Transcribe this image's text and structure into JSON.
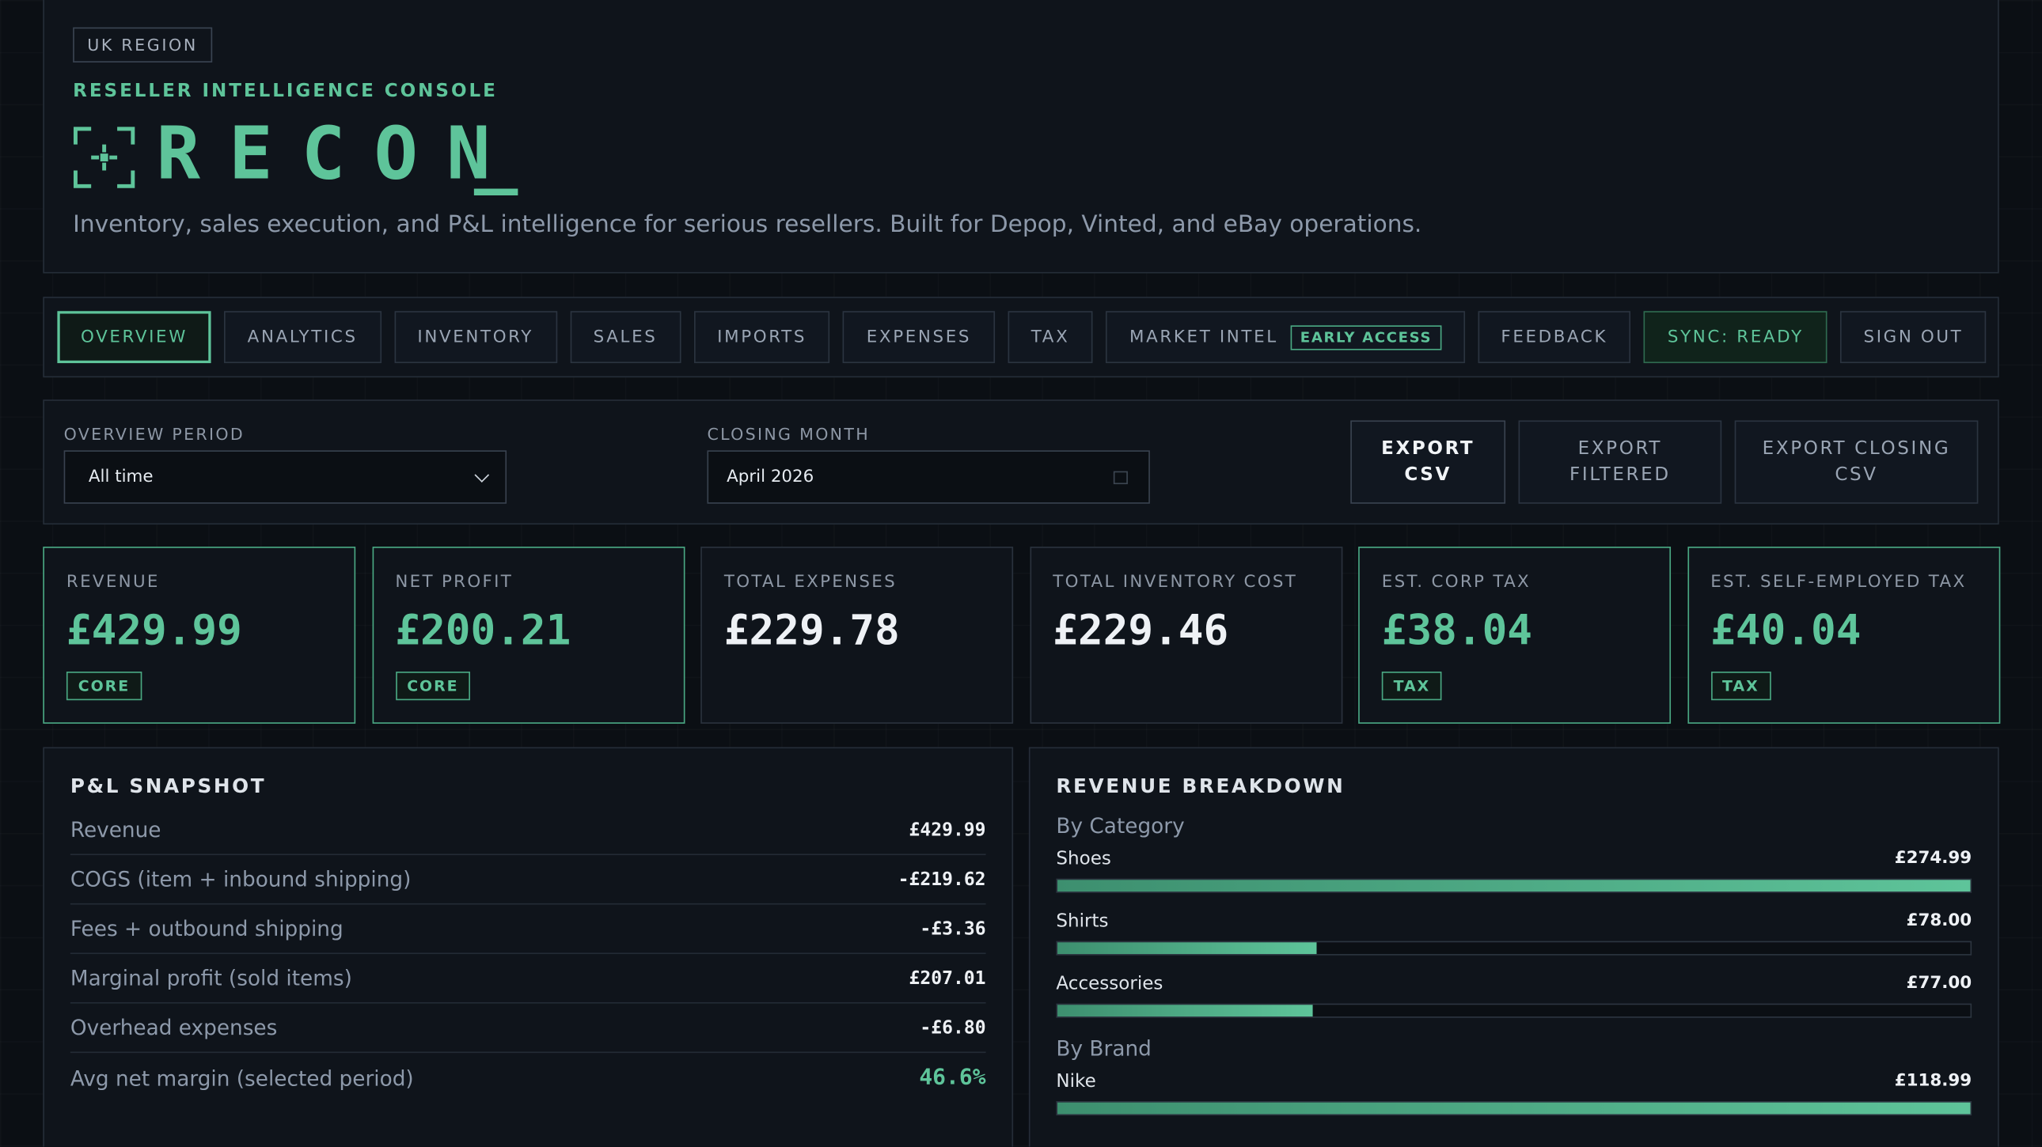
{
  "header": {
    "badge": "UK REGION",
    "eyebrow": "RESELLER INTELLIGENCE CONSOLE",
    "title": "RECON",
    "cursor": "_",
    "subtitle": "Inventory, sales execution, and P&L intelligence for serious resellers. Built for Depop, Vinted, and eBay operations."
  },
  "nav": [
    {
      "label": "OVERVIEW",
      "active": true
    },
    {
      "label": "ANALYTICS"
    },
    {
      "label": "INVENTORY"
    },
    {
      "label": "SALES"
    },
    {
      "label": "IMPORTS"
    },
    {
      "label": "EXPENSES"
    },
    {
      "label": "TAX"
    },
    {
      "label": "MARKET INTEL",
      "tag": "EARLY ACCESS"
    },
    {
      "label": "FEEDBACK"
    },
    {
      "label": "SYNC: READY",
      "status": true
    },
    {
      "label": "SIGN OUT"
    }
  ],
  "filters": {
    "period_label": "OVERVIEW PERIOD",
    "period_value": "All time",
    "month_label": "CLOSING MONTH",
    "month_value": "April 2026",
    "buttons": [
      {
        "label": "EXPORT CSV",
        "primary": true
      },
      {
        "label": "EXPORT FILTERED"
      },
      {
        "label": "EXPORT CLOSING CSV"
      }
    ]
  },
  "kpis": [
    {
      "label": "REVENUE",
      "value": "£429.99",
      "tag": "CORE",
      "accent": true
    },
    {
      "label": "NET PROFIT",
      "value": "£200.21",
      "tag": "CORE",
      "accent": true
    },
    {
      "label": "TOTAL EXPENSES",
      "value": "£229.78"
    },
    {
      "label": "TOTAL INVENTORY COST",
      "value": "£229.46"
    },
    {
      "label": "EST. CORP TAX",
      "value": "£38.04",
      "tag": "TAX",
      "accent": true
    },
    {
      "label": "EST. SELF-EMPLOYED TAX",
      "value": "£40.04",
      "tag": "TAX",
      "accent": true
    }
  ],
  "pnl": {
    "title": "P&L SNAPSHOT",
    "rows": [
      {
        "label": "Revenue",
        "value": "£429.99"
      },
      {
        "label": "COGS (item + inbound shipping)",
        "value": "-£219.62"
      },
      {
        "label": "Fees + outbound shipping",
        "value": "-£3.36"
      },
      {
        "label": "Marginal profit (sold items)",
        "value": "£207.01"
      },
      {
        "label": "Overhead expenses",
        "value": "-£6.80"
      },
      {
        "label": "Avg net margin (selected period)",
        "value": "46.6%",
        "accent": true
      }
    ]
  },
  "breakdown": {
    "title": "REVENUE BREAKDOWN",
    "groups": [
      {
        "title": "By Category",
        "items": [
          {
            "name": "Shoes",
            "value": 274.99,
            "label": "£274.99"
          },
          {
            "name": "Shirts",
            "value": 78.0,
            "label": "£78.00"
          },
          {
            "name": "Accessories",
            "value": 77.0,
            "label": "£77.00"
          }
        ]
      },
      {
        "title": "By Brand",
        "items": [
          {
            "name": "Nike",
            "value": 118.99,
            "label": "£118.99"
          }
        ]
      }
    ]
  }
}
